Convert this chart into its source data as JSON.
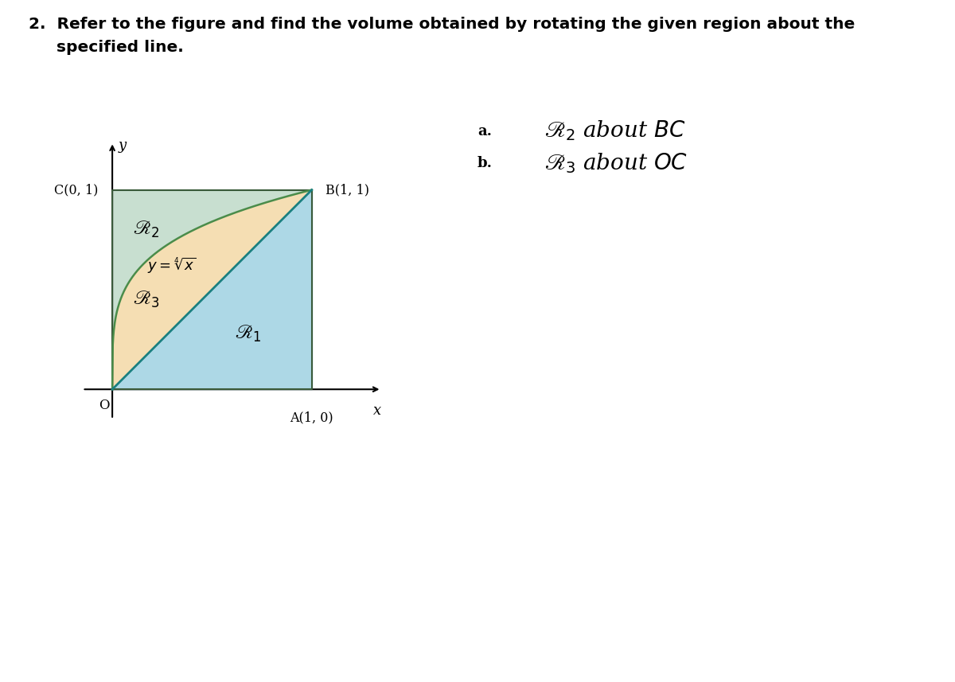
{
  "fig_width": 12.0,
  "fig_height": 8.57,
  "background_color": "#ffffff",
  "region_R2_color": "#c8dfd0",
  "region_R3_color": "#f5deb3",
  "region_R1_color": "#add8e6",
  "curve_color": "#4a8c4a",
  "diagonal_color": "#1a8080",
  "border_color": "#3a5a3a",
  "title_line1": "2.  Refer to the figure and find the volume obtained by rotating the given region about the",
  "title_line2": "     specified line.",
  "title_fontsize": 14.5,
  "labels_O": "O",
  "labels_A": "A(1, 0)",
  "labels_B": "B(1, 1)",
  "labels_C": "C(0, 1)",
  "labels_y": "y",
  "labels_x": "x",
  "labels_R1": "$\\mathscr{R}_1$",
  "labels_R2": "$\\mathscr{R}_2$",
  "labels_R3": "$\\mathscr{R}_3$",
  "labels_curve": "$y = \\sqrt[4]{x}$",
  "side_a_label": "a.",
  "side_b_label": "b.",
  "side_a_text": "$\\mathscr{R}_2$ about $BC$",
  "side_b_text": "$\\mathscr{R}_3$ about $OC$"
}
